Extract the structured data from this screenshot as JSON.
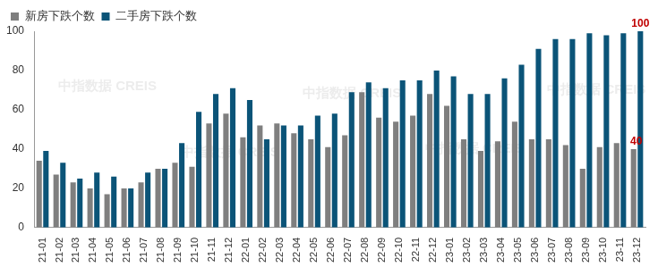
{
  "chart_data": {
    "type": "bar",
    "categories": [
      "21-01",
      "21-02",
      "21-03",
      "21-04",
      "21-05",
      "21-06",
      "21-07",
      "21-08",
      "21-09",
      "21-10",
      "21-11",
      "21-12",
      "22-01",
      "22-02",
      "22-03",
      "22-04",
      "22-05",
      "22-06",
      "22-07",
      "22-08",
      "22-09",
      "22-10",
      "22-11",
      "22-12",
      "23-01",
      "23-02",
      "23-03",
      "23-04",
      "23-05",
      "23-06",
      "23-07",
      "23-08",
      "23-09",
      "23-10",
      "23-11",
      "23-12"
    ],
    "series": [
      {
        "name": "新房下跌个数",
        "color": "#7f7f7f",
        "values": [
          34,
          27,
          23,
          20,
          17,
          20,
          23,
          30,
          33,
          31,
          53,
          58,
          46,
          52,
          53,
          48,
          45,
          41,
          47,
          69,
          56,
          54,
          57,
          68,
          62,
          45,
          39,
          44,
          54,
          45,
          45,
          42,
          30,
          41,
          43,
          40
        ]
      },
      {
        "name": "二手房下跌个数",
        "color": "#0b5478",
        "values": [
          39,
          33,
          25,
          28,
          26,
          20,
          28,
          30,
          43,
          59,
          68,
          71,
          65,
          45,
          52,
          52,
          57,
          58,
          69,
          74,
          71,
          75,
          75,
          80,
          77,
          68,
          68,
          76,
          83,
          91,
          96,
          96,
          99,
          98,
          99,
          100
        ]
      }
    ],
    "ylim": [
      0,
      100
    ],
    "yticks": [
      0,
      20,
      40,
      60,
      80,
      100
    ],
    "grid": false,
    "legend": "top-left",
    "annotations": [
      {
        "text": "100",
        "series": "二手房下跌个数",
        "category": "23-12",
        "color": "#c00000"
      },
      {
        "text": "40",
        "series": "新房下跌个数",
        "category": "23-12",
        "color": "#c00000"
      }
    ],
    "watermark": "中指数据 CREIS"
  }
}
